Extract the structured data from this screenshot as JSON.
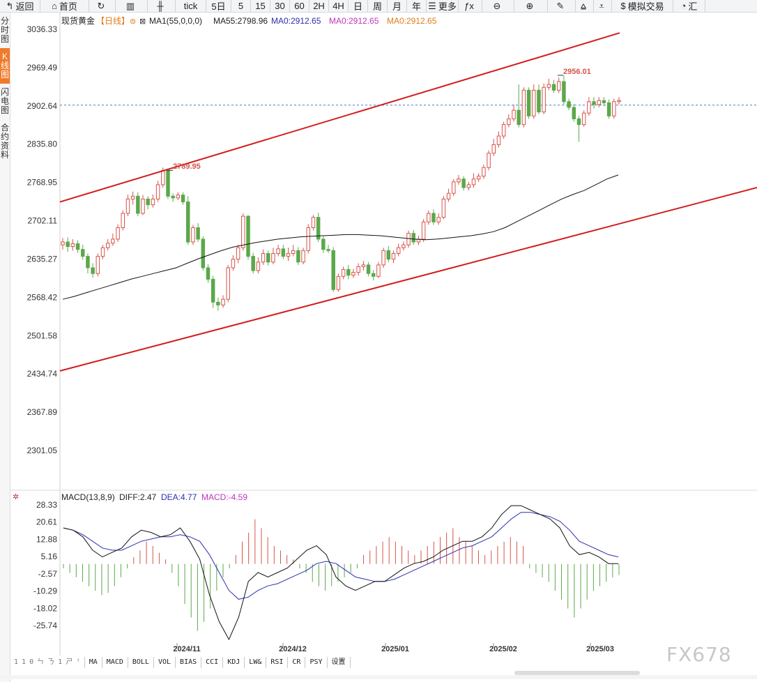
{
  "toolbar": [
    {
      "icon": "↰",
      "icon_name": "back-arrow-icon",
      "label": "返回"
    },
    {
      "icon": "⌂",
      "icon_name": "home-icon",
      "label": "首页"
    },
    {
      "icon": "↻",
      "icon_name": "refresh-icon",
      "label": ""
    },
    {
      "icon": "▥",
      "icon_name": "bar-chart-icon",
      "label": ""
    },
    {
      "icon": "╫",
      "icon_name": "candlestick-icon",
      "label": ""
    },
    {
      "icon": "",
      "icon_name": "",
      "label": "tick"
    },
    {
      "icon": "",
      "icon_name": "",
      "label": "5日"
    },
    {
      "icon": "",
      "icon_name": "",
      "label": "5"
    },
    {
      "icon": "",
      "icon_name": "",
      "label": "15"
    },
    {
      "icon": "",
      "icon_name": "",
      "label": "30"
    },
    {
      "icon": "",
      "icon_name": "",
      "label": "60"
    },
    {
      "icon": "",
      "icon_name": "",
      "label": "2H"
    },
    {
      "icon": "",
      "icon_name": "",
      "label": "4H"
    },
    {
      "icon": "",
      "icon_name": "",
      "label": "日"
    },
    {
      "icon": "",
      "icon_name": "",
      "label": "周"
    },
    {
      "icon": "",
      "icon_name": "",
      "label": "月"
    },
    {
      "icon": "",
      "icon_name": "",
      "label": "年"
    },
    {
      "icon": "☰",
      "icon_name": "menu-icon",
      "label": "更多"
    },
    {
      "icon": "ƒx",
      "icon_name": "function-icon",
      "label": ""
    },
    {
      "icon": "⊖",
      "icon_name": "zoom-out-icon",
      "label": ""
    },
    {
      "icon": "⊕",
      "icon_name": "zoom-in-icon",
      "label": ""
    },
    {
      "icon": "✎",
      "icon_name": "draw-pen-icon",
      "label": ""
    },
    {
      "icon": "⩠",
      "icon_name": "up-triangle-icon",
      "label": ""
    },
    {
      "icon": "⩡",
      "icon_name": "down-triangle-icon",
      "label": ""
    },
    {
      "icon": "$",
      "icon_name": "dollar-icon",
      "label": "模拟交易"
    },
    {
      "icon": "◔",
      "icon_name": "clock-icon",
      "label": "汇"
    }
  ],
  "side_tabs": [
    {
      "label": "分时图",
      "active": false
    },
    {
      "label": "K线图",
      "active": true
    },
    {
      "label": "闪电图",
      "active": false
    },
    {
      "label": "合约资料",
      "active": false
    }
  ],
  "legend": {
    "instrument": "现货黄金",
    "period": "【日线】",
    "ma1": "MA1(55,0,0,0)",
    "ma55": "MA55:2798.96",
    "ma0_a": "MA0:2912.65",
    "ma0_b": "MA0:2912.65",
    "ma0_c": "MA0:2912.65"
  },
  "macd_legend": {
    "name": "MACD(13,8,9)",
    "diff": "DIFF:2.47",
    "dea": "DEA:4.77",
    "macd": "MACD:-4.59"
  },
  "annotations": {
    "high_left": "2789.95",
    "high_right": "2956.01"
  },
  "bottom_tabs": [
    "1 1 0 ㄣ ㄋ 1 ㄕ ᵗ",
    "MA",
    "MACD",
    "BOLL",
    "VOL",
    "BIAS",
    "CCI",
    "KDJ",
    "LW&",
    "RSI",
    "CR",
    "PSY",
    "设置"
  ],
  "watermark": "FX678",
  "colors": {
    "up": "#d6534a",
    "down": "#5ba84a",
    "channel": "#d21d1d",
    "ma": "#111111",
    "dea": "#2b2fb0",
    "dashed": "#3a7bd5",
    "macd_pink": "#c033c0",
    "ma0": "#e07b1a"
  },
  "chart_data": {
    "type": "candlestick",
    "title": "现货黄金 【日线】",
    "y_ticks": [
      3036.33,
      2969.49,
      2902.64,
      2835.8,
      2768.95,
      2702.11,
      2635.27,
      2568.42,
      2501.58,
      2434.74,
      2367.89,
      2301.05
    ],
    "ylim": [
      2301.05,
      3036.33
    ],
    "x_labels": [
      "2024/11",
      "2024/12",
      "2025/01",
      "2025/02",
      "2025/03"
    ],
    "current_price_line": 2904,
    "candles": [
      [
        2660,
        2665,
        2672,
        2652
      ],
      [
        2665,
        2657,
        2673,
        2648
      ],
      [
        2657,
        2662,
        2670,
        2650
      ],
      [
        2662,
        2652,
        2668,
        2646
      ],
      [
        2652,
        2640,
        2660,
        2634
      ],
      [
        2640,
        2620,
        2645,
        2610
      ],
      [
        2620,
        2610,
        2628,
        2603
      ],
      [
        2610,
        2640,
        2645,
        2605
      ],
      [
        2640,
        2655,
        2660,
        2635
      ],
      [
        2655,
        2663,
        2670,
        2650
      ],
      [
        2663,
        2670,
        2680,
        2658
      ],
      [
        2670,
        2690,
        2696,
        2665
      ],
      [
        2690,
        2715,
        2720,
        2685
      ],
      [
        2715,
        2740,
        2748,
        2710
      ],
      [
        2740,
        2745,
        2753,
        2730
      ],
      [
        2745,
        2715,
        2752,
        2710
      ],
      [
        2715,
        2740,
        2747,
        2712
      ],
      [
        2740,
        2730,
        2745,
        2722
      ],
      [
        2730,
        2740,
        2748,
        2725
      ],
      [
        2740,
        2765,
        2772,
        2735
      ],
      [
        2765,
        2790,
        2795,
        2760
      ],
      [
        2790,
        2745,
        2792,
        2740
      ],
      [
        2745,
        2742,
        2750,
        2735
      ],
      [
        2742,
        2747,
        2752,
        2738
      ],
      [
        2747,
        2735,
        2752,
        2730
      ],
      [
        2735,
        2665,
        2745,
        2660
      ],
      [
        2665,
        2690,
        2695,
        2660
      ],
      [
        2690,
        2670,
        2698,
        2665
      ],
      [
        2670,
        2620,
        2675,
        2615
      ],
      [
        2620,
        2600,
        2626,
        2594
      ],
      [
        2600,
        2560,
        2606,
        2550
      ],
      [
        2560,
        2555,
        2568,
        2545
      ],
      [
        2555,
        2565,
        2572,
        2550
      ],
      [
        2565,
        2620,
        2625,
        2560
      ],
      [
        2620,
        2635,
        2642,
        2615
      ],
      [
        2635,
        2655,
        2660,
        2628
      ],
      [
        2655,
        2710,
        2715,
        2650
      ],
      [
        2710,
        2640,
        2712,
        2634
      ],
      [
        2640,
        2615,
        2646,
        2610
      ],
      [
        2615,
        2630,
        2638,
        2610
      ],
      [
        2630,
        2645,
        2652,
        2625
      ],
      [
        2645,
        2630,
        2650,
        2624
      ],
      [
        2630,
        2645,
        2655,
        2626
      ],
      [
        2645,
        2653,
        2660,
        2640
      ],
      [
        2653,
        2640,
        2660,
        2635
      ],
      [
        2640,
        2645,
        2655,
        2632
      ],
      [
        2645,
        2650,
        2660,
        2640
      ],
      [
        2650,
        2630,
        2656,
        2625
      ],
      [
        2630,
        2650,
        2655,
        2626
      ],
      [
        2650,
        2690,
        2696,
        2645
      ],
      [
        2690,
        2708,
        2712,
        2685
      ],
      [
        2708,
        2670,
        2716,
        2665
      ],
      [
        2670,
        2652,
        2675,
        2646
      ],
      [
        2652,
        2650,
        2660,
        2646
      ],
      [
        2650,
        2582,
        2656,
        2578
      ],
      [
        2582,
        2605,
        2610,
        2578
      ],
      [
        2605,
        2617,
        2622,
        2600
      ],
      [
        2617,
        2607,
        2625,
        2600
      ],
      [
        2607,
        2612,
        2618,
        2602
      ],
      [
        2612,
        2622,
        2628,
        2606
      ],
      [
        2622,
        2625,
        2632,
        2615
      ],
      [
        2625,
        2610,
        2630,
        2605
      ],
      [
        2610,
        2605,
        2616,
        2598
      ],
      [
        2605,
        2625,
        2630,
        2602
      ],
      [
        2625,
        2650,
        2655,
        2620
      ],
      [
        2650,
        2635,
        2658,
        2630
      ],
      [
        2635,
        2645,
        2650,
        2628
      ],
      [
        2645,
        2655,
        2662,
        2640
      ],
      [
        2655,
        2660,
        2666,
        2650
      ],
      [
        2660,
        2680,
        2685,
        2655
      ],
      [
        2680,
        2665,
        2686,
        2660
      ],
      [
        2665,
        2670,
        2676,
        2660
      ],
      [
        2670,
        2700,
        2705,
        2665
      ],
      [
        2700,
        2715,
        2720,
        2695
      ],
      [
        2715,
        2700,
        2722,
        2695
      ],
      [
        2700,
        2708,
        2715,
        2695
      ],
      [
        2708,
        2740,
        2745,
        2705
      ],
      [
        2740,
        2750,
        2758,
        2735
      ],
      [
        2750,
        2770,
        2775,
        2745
      ],
      [
        2770,
        2775,
        2782,
        2765
      ],
      [
        2775,
        2760,
        2780,
        2755
      ],
      [
        2760,
        2765,
        2770,
        2755
      ],
      [
        2765,
        2775,
        2785,
        2760
      ],
      [
        2775,
        2780,
        2785,
        2770
      ],
      [
        2780,
        2795,
        2800,
        2775
      ],
      [
        2795,
        2820,
        2825,
        2790
      ],
      [
        2820,
        2835,
        2845,
        2815
      ],
      [
        2835,
        2850,
        2858,
        2830
      ],
      [
        2850,
        2870,
        2875,
        2845
      ],
      [
        2870,
        2880,
        2888,
        2865
      ],
      [
        2880,
        2895,
        2905,
        2875
      ],
      [
        2895,
        2870,
        2940,
        2865
      ],
      [
        2870,
        2930,
        2935,
        2865
      ],
      [
        2930,
        2885,
        2935,
        2880
      ],
      [
        2885,
        2930,
        2940,
        2880
      ],
      [
        2930,
        2892,
        2940,
        2888
      ],
      [
        2892,
        2935,
        2942,
        2888
      ],
      [
        2935,
        2940,
        2950,
        2930
      ],
      [
        2940,
        2930,
        2948,
        2925
      ],
      [
        2930,
        2945,
        2952,
        2925
      ],
      [
        2945,
        2910,
        2956,
        2905
      ],
      [
        2910,
        2900,
        2915,
        2895
      ],
      [
        2900,
        2880,
        2906,
        2875
      ],
      [
        2880,
        2870,
        2885,
        2840
      ],
      [
        2870,
        2890,
        2895,
        2866
      ],
      [
        2890,
        2910,
        2918,
        2885
      ],
      [
        2910,
        2905,
        2918,
        2898
      ],
      [
        2905,
        2912,
        2918,
        2900
      ],
      [
        2912,
        2908,
        2918,
        2902
      ],
      [
        2908,
        2885,
        2914,
        2880
      ],
      [
        2885,
        2910,
        2915,
        2880
      ],
      [
        2910,
        2912,
        2918,
        2905
      ]
    ],
    "ma55": [
      2565,
      2570,
      2576,
      2582,
      2588,
      2594,
      2600,
      2605,
      2610,
      2615,
      2620,
      2628,
      2636,
      2643,
      2650,
      2656,
      2660,
      2664,
      2667,
      2670,
      2672,
      2674,
      2675,
      2676,
      2677,
      2678,
      2678,
      2677,
      2676,
      2674,
      2672,
      2670,
      2669,
      2670,
      2672,
      2674,
      2676,
      2679,
      2683,
      2690,
      2700,
      2710,
      2720,
      2730,
      2740,
      2748,
      2755,
      2765,
      2775,
      2782
    ],
    "channel_upper": [
      [
        0,
        2735
      ],
      [
        1,
        3030
      ]
    ],
    "channel_lower": [
      [
        0,
        2440
      ],
      [
        1,
        2760
      ]
    ],
    "macd": {
      "name": "MACD(13,8,9)",
      "y_ticks": [
        28.33,
        20.61,
        12.88,
        5.16,
        -2.57,
        -10.29,
        -18.02,
        -25.74
      ],
      "diff": [
        18,
        17,
        14,
        8,
        5,
        7,
        9,
        14,
        17,
        16,
        14,
        15,
        18,
        12,
        4,
        -12,
        -24,
        -32,
        -22,
        -6,
        -2,
        -4,
        -2,
        0,
        4,
        8,
        10,
        6,
        -4,
        -8,
        -10,
        -8,
        -6,
        -6,
        -3,
        0,
        2,
        3,
        5,
        8,
        10,
        12,
        12,
        14,
        18,
        24,
        28,
        28,
        26,
        24,
        22,
        18,
        10,
        6,
        7,
        5,
        2,
        2
      ],
      "dea": [
        18,
        17,
        15,
        12,
        9,
        8,
        8,
        10,
        12,
        13,
        14,
        14,
        15,
        14,
        12,
        6,
        -2,
        -10,
        -14,
        -13,
        -10,
        -8,
        -7,
        -5,
        -3,
        -1,
        2,
        3,
        2,
        -1,
        -4,
        -5,
        -6,
        -6,
        -5,
        -3,
        -1,
        1,
        3,
        5,
        7,
        9,
        10,
        12,
        14,
        18,
        22,
        25,
        25,
        24,
        23,
        21,
        17,
        12,
        10,
        8,
        6,
        5
      ],
      "hist": [
        -2,
        -4,
        -6,
        -8,
        -10,
        -12,
        -14,
        -13,
        -10,
        -6,
        -2,
        3,
        6,
        10,
        8,
        5,
        2,
        -4,
        -10,
        -18,
        -24,
        -30,
        -26,
        -20,
        -12,
        -6,
        -2,
        4,
        10,
        14,
        20,
        16,
        12,
        8,
        6,
        4,
        2,
        -2,
        -4,
        -8,
        -10,
        -12,
        -10,
        -8,
        -6,
        -4,
        -2,
        4,
        6,
        8,
        10,
        12,
        10,
        8,
        6,
        4,
        6,
        8,
        10,
        12,
        14,
        16,
        12,
        10,
        8,
        6,
        4,
        6,
        8,
        10,
        12,
        10,
        8,
        -2,
        -4,
        -6,
        -8,
        -12,
        -16,
        -20,
        -24,
        -20,
        -16,
        -12,
        -10,
        -8,
        -6,
        -5
      ]
    }
  }
}
